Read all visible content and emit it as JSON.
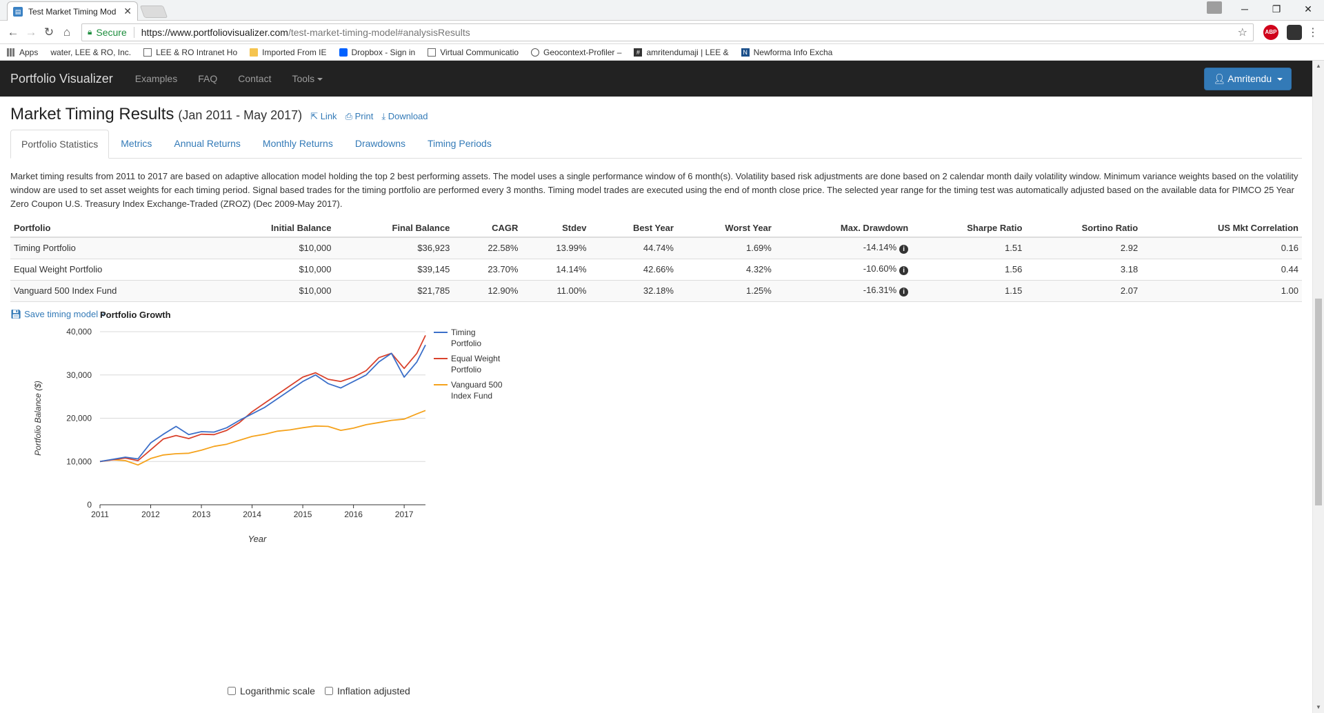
{
  "browser": {
    "tab_title": "Test Market Timing Mod",
    "tab_close": "✕",
    "secure_label": "Secure",
    "url_host": "https://www.portfoliovisualizer.com",
    "url_path": "/test-market-timing-model#analysisResults",
    "extension_badge": "ABP",
    "bookmarks": [
      {
        "label": "Apps",
        "icon": "apps-icon"
      },
      {
        "label": "water, LEE & RO, Inc.",
        "icon": "none"
      },
      {
        "label": "LEE & RO Intranet Ho",
        "icon": "page-icon"
      },
      {
        "label": "Imported From IE",
        "icon": "folder-icon"
      },
      {
        "label": "Dropbox - Sign in",
        "icon": "dropbox-icon"
      },
      {
        "label": "Virtual Communicatio",
        "icon": "page-icon"
      },
      {
        "label": "Geocontext-Profiler –",
        "icon": "globe-icon"
      },
      {
        "label": "amritendumaji | LEE &",
        "icon": "hash-icon"
      },
      {
        "label": "Newforma Info Excha",
        "icon": "newforma-icon"
      }
    ]
  },
  "site": {
    "brand": "Portfolio Visualizer",
    "nav": [
      "Examples",
      "FAQ",
      "Contact",
      "Tools"
    ],
    "user": "Amritendu"
  },
  "page": {
    "title": "Market Timing Results",
    "range": "(Jan 2011 - May 2017)",
    "link_label": "Link",
    "print_label": "Print",
    "download_label": "Download",
    "tabs": [
      "Portfolio Statistics",
      "Metrics",
      "Annual Returns",
      "Monthly Returns",
      "Drawdowns",
      "Timing Periods"
    ],
    "description": "Market timing results from 2011 to 2017 are based on adaptive allocation model holding the top 2 best performing assets. The model uses a single performance window of 6 month(s). Volatility based risk adjustments are done based on 2 calendar month daily volatility window. Minimum variance weights based on the volatility window are used to set asset weights for each timing period. Signal based trades for the timing portfolio are performed every 3 months. Timing model trades are executed using the end of month close price. The selected year range for the timing test was automatically adjusted based on the available data for PIMCO 25 Year Zero Coupon U.S. Treasury Index Exchange-Traded (ZROZ) (Dec 2009-May 2017).",
    "save_link": "Save timing model »",
    "checkbox_log": "Logarithmic scale",
    "checkbox_inflation": "Inflation adjusted"
  },
  "table": {
    "headers": [
      "Portfolio",
      "Initial Balance",
      "Final Balance",
      "CAGR",
      "Stdev",
      "Best Year",
      "Worst Year",
      "Max. Drawdown",
      "Sharpe Ratio",
      "Sortino Ratio",
      "US Mkt Correlation"
    ],
    "rows": [
      [
        "Timing Portfolio",
        "$10,000",
        "$36,923",
        "22.58%",
        "13.99%",
        "44.74%",
        "1.69%",
        "-14.14%",
        "1.51",
        "2.92",
        "0.16"
      ],
      [
        "Equal Weight Portfolio",
        "$10,000",
        "$39,145",
        "23.70%",
        "14.14%",
        "42.66%",
        "4.32%",
        "-10.60%",
        "1.56",
        "3.18",
        "0.44"
      ],
      [
        "Vanguard 500 Index Fund",
        "$10,000",
        "$21,785",
        "12.90%",
        "11.00%",
        "32.18%",
        "1.25%",
        "-16.31%",
        "1.15",
        "2.07",
        "1.00"
      ]
    ]
  },
  "chart_data": {
    "type": "line",
    "title": "Portfolio Growth",
    "xlabel": "Year",
    "ylabel": "Portfolio Balance ($)",
    "xlim": [
      2011,
      2017.42
    ],
    "ylim": [
      0,
      40000
    ],
    "yticks": [
      "0",
      "10,000",
      "20,000",
      "30,000",
      "40,000"
    ],
    "xticks": [
      "2011",
      "2012",
      "2013",
      "2014",
      "2015",
      "2016",
      "2017"
    ],
    "legend": "right",
    "series": [
      {
        "name": "Timing Portfolio",
        "color": "#3b6fc9",
        "x": [
          2011,
          2011.25,
          2011.5,
          2011.75,
          2012,
          2012.25,
          2012.5,
          2012.75,
          2013,
          2013.25,
          2013.5,
          2013.75,
          2014,
          2014.25,
          2014.5,
          2014.75,
          2015,
          2015.25,
          2015.5,
          2015.75,
          2016,
          2016.25,
          2016.5,
          2016.75,
          2017,
          2017.25,
          2017.42
        ],
        "y": [
          10000,
          10500,
          11000,
          10600,
          14300,
          16300,
          18100,
          16200,
          16900,
          16800,
          17800,
          19500,
          21000,
          22500,
          24500,
          26500,
          28500,
          30000,
          28000,
          27000,
          28500,
          30000,
          33000,
          35000,
          29500,
          33000,
          36923
        ]
      },
      {
        "name": "Equal Weight Portfolio",
        "color": "#d9412b",
        "x": [
          2011,
          2011.25,
          2011.5,
          2011.75,
          2012,
          2012.25,
          2012.5,
          2012.75,
          2013,
          2013.25,
          2013.5,
          2013.75,
          2014,
          2014.25,
          2014.5,
          2014.75,
          2015,
          2015.25,
          2015.5,
          2015.75,
          2016,
          2016.25,
          2016.5,
          2016.75,
          2017,
          2017.25,
          2017.42
        ],
        "y": [
          10000,
          10400,
          10800,
          10200,
          12700,
          15200,
          16000,
          15300,
          16300,
          16200,
          17200,
          19000,
          21500,
          23500,
          25500,
          27500,
          29500,
          30500,
          29000,
          28500,
          29500,
          31000,
          34000,
          35000,
          31500,
          35000,
          39145
        ]
      },
      {
        "name": "Vanguard 500 Index Fund",
        "color": "#f5a21b",
        "x": [
          2011,
          2011.25,
          2011.5,
          2011.75,
          2012,
          2012.25,
          2012.5,
          2012.75,
          2013,
          2013.25,
          2013.5,
          2013.75,
          2014,
          2014.25,
          2014.5,
          2014.75,
          2015,
          2015.25,
          2015.5,
          2015.75,
          2016,
          2016.25,
          2016.5,
          2016.75,
          2017,
          2017.25,
          2017.42
        ],
        "y": [
          10000,
          10400,
          10200,
          9200,
          10700,
          11500,
          11800,
          11900,
          12600,
          13500,
          14000,
          14900,
          15800,
          16300,
          17000,
          17300,
          17800,
          18200,
          18100,
          17200,
          17700,
          18500,
          19000,
          19500,
          19800,
          21000,
          21785
        ]
      }
    ]
  }
}
